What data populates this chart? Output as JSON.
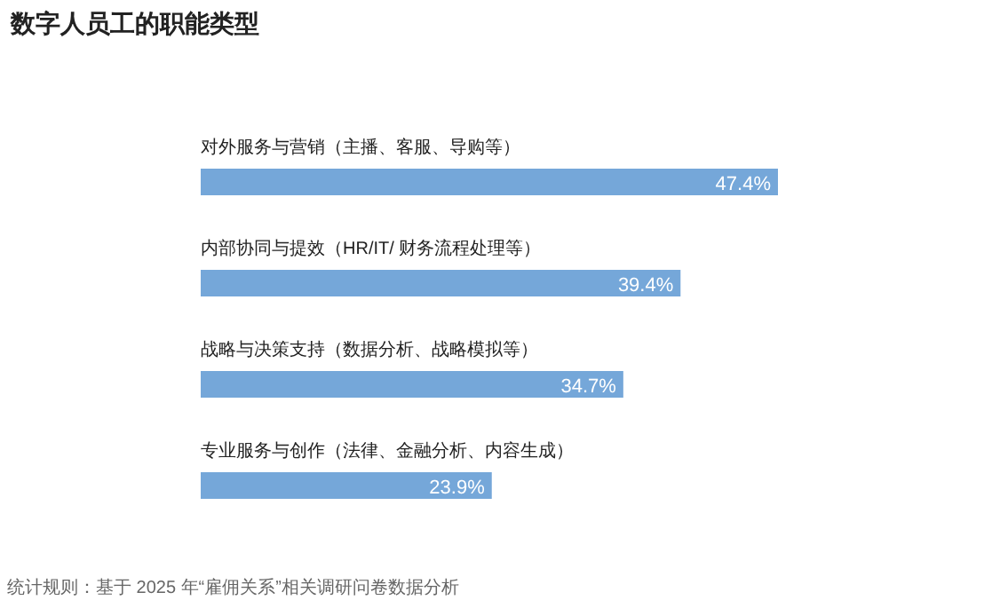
{
  "chart_data": {
    "type": "bar",
    "orientation": "horizontal",
    "title": "数字人员工的职能类型",
    "categories": [
      "对外服务与营销（主播、客服、导购等）",
      "内部协同与提效（HR/IT/ 财务流程处理等）",
      "战略与决策支持（数据分析、战略模拟等）",
      "专业服务与创作（法律、金融分析、内容生成）"
    ],
    "values": [
      47.4,
      39.4,
      34.7,
      23.9
    ],
    "value_labels": [
      "47.4%",
      "39.4%",
      "34.7%",
      "23.9%"
    ],
    "color": "#75a7d9",
    "annotations": [
      "统计规则：基于 2025 年“雇佣关系”相关调研问卷数据分析"
    ]
  }
}
